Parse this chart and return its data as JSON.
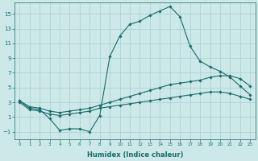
{
  "xlabel": "Humidex (Indice chaleur)",
  "bg_color": "#cce8e8",
  "line_color": "#1a6b6b",
  "grid_color": "#aacfcf",
  "xlim": [
    -0.5,
    23.5
  ],
  "ylim": [
    -2.0,
    16.5
  ],
  "yticks": [
    -1,
    1,
    3,
    5,
    7,
    9,
    11,
    13,
    15
  ],
  "xticks": [
    0,
    1,
    2,
    3,
    4,
    5,
    6,
    7,
    8,
    9,
    10,
    11,
    12,
    13,
    14,
    15,
    16,
    17,
    18,
    19,
    20,
    21,
    22,
    23
  ],
  "line1_x": [
    0,
    1,
    2,
    3,
    4,
    5,
    6,
    7,
    8,
    9,
    10,
    11,
    12,
    13,
    14,
    15,
    16,
    17,
    18,
    19,
    20,
    21,
    22,
    23
  ],
  "line1_y": [
    3.2,
    2.2,
    2.0,
    0.8,
    -0.8,
    -0.6,
    -0.6,
    -1.0,
    1.2,
    9.2,
    12.0,
    13.6,
    14.0,
    14.8,
    15.4,
    16.0,
    14.6,
    10.6,
    8.6,
    7.8,
    7.2,
    6.4,
    5.2,
    4.0
  ],
  "line2_x": [
    0,
    1,
    2,
    3,
    4,
    5,
    6,
    7,
    8,
    9,
    10,
    11,
    12,
    13,
    14,
    15,
    16,
    17,
    18,
    19,
    20,
    21,
    22,
    23
  ],
  "line2_y": [
    3.2,
    2.4,
    2.2,
    1.8,
    1.6,
    1.8,
    2.0,
    2.2,
    2.6,
    3.0,
    3.4,
    3.8,
    4.2,
    4.6,
    5.0,
    5.4,
    5.6,
    5.8,
    6.0,
    6.4,
    6.6,
    6.6,
    6.2,
    5.2
  ],
  "line3_x": [
    0,
    1,
    2,
    3,
    4,
    5,
    6,
    7,
    8,
    9,
    10,
    11,
    12,
    13,
    14,
    15,
    16,
    17,
    18,
    19,
    20,
    21,
    22,
    23
  ],
  "line3_y": [
    3.0,
    2.0,
    1.8,
    1.4,
    1.2,
    1.4,
    1.6,
    1.8,
    2.2,
    2.4,
    2.6,
    2.8,
    3.0,
    3.2,
    3.4,
    3.6,
    3.8,
    4.0,
    4.2,
    4.4,
    4.4,
    4.2,
    3.8,
    3.4
  ],
  "xlabel_fontsize": 6,
  "ytick_fontsize": 5,
  "xtick_fontsize": 4,
  "marker_size": 1.8,
  "line_width": 0.8
}
